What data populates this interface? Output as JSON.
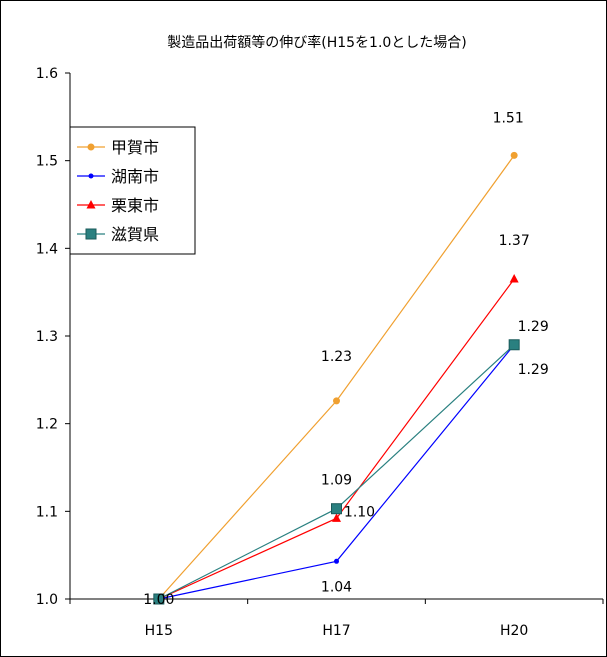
{
  "chart_data": {
    "type": "line",
    "title": "製造品出荷額等の伸び率(H15を1.0とした場合)",
    "categories": [
      "H15",
      "H17",
      "H20"
    ],
    "ylim": [
      1.0,
      1.6
    ],
    "yticks": [
      "1.0",
      "1.1",
      "1.2",
      "1.3",
      "1.4",
      "1.5",
      "1.6"
    ],
    "grid": false,
    "legend_position": "left",
    "series": [
      {
        "name": "甲賀市",
        "values": [
          1.0,
          1.226,
          1.506
        ],
        "color": "#f0a030",
        "marker": "circle"
      },
      {
        "name": "湖南市",
        "values": [
          1.0,
          1.043,
          1.29
        ],
        "color": "#0000ff",
        "marker": "dot"
      },
      {
        "name": "栗東市",
        "values": [
          1.0,
          1.092,
          1.365
        ],
        "color": "#ff0000",
        "marker": "triangle"
      },
      {
        "name": "滋賀県",
        "values": [
          1.0,
          1.103,
          1.29
        ],
        "color": "#2a8080",
        "marker": "square"
      }
    ],
    "annotations": [
      {
        "text": "1.00",
        "cat": 0,
        "y": 1.0
      },
      {
        "text": "1.23",
        "cat": 1,
        "y": 1.226
      },
      {
        "text": "1.09",
        "cat": 1,
        "y": 1.092
      },
      {
        "text": "1.10",
        "cat": 1,
        "y": 1.103
      },
      {
        "text": "1.04",
        "cat": 1,
        "y": 1.043
      },
      {
        "text": "1.51",
        "cat": 2,
        "y": 1.506
      },
      {
        "text": "1.37",
        "cat": 2,
        "y": 1.365
      },
      {
        "text": "1.29",
        "cat": 2,
        "y": 1.29
      },
      {
        "text": "1.29",
        "cat": 2,
        "y": 1.29
      }
    ]
  }
}
